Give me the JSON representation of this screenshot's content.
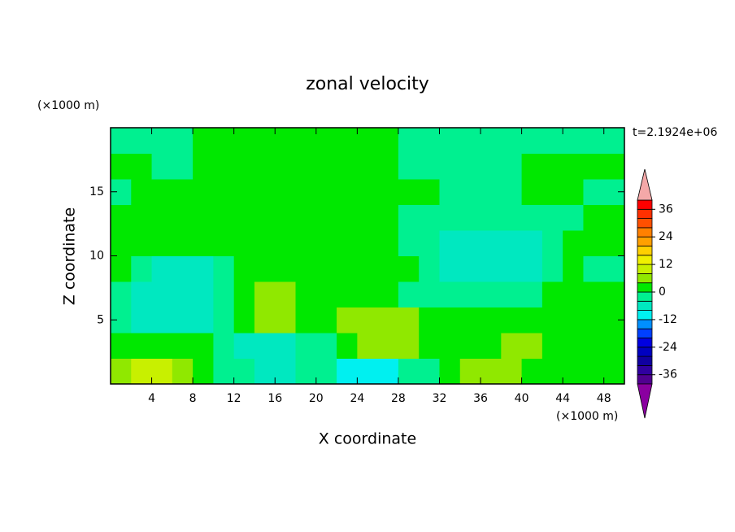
{
  "chart_data": {
    "type": "contour",
    "title": "zonal velocity",
    "xlabel": "X coordinate",
    "ylabel": "Z coordinate",
    "x_unit": "(×1000 m)",
    "y_unit": "(×1000 m)",
    "annotation": "t=2.1924e+06",
    "xlim": [
      0,
      50
    ],
    "ylim": [
      0,
      20
    ],
    "xticks": [
      4,
      8,
      12,
      16,
      20,
      24,
      28,
      32,
      36,
      40,
      44,
      48
    ],
    "yticks": [
      5,
      10,
      15
    ],
    "x": [
      1,
      3,
      5,
      7,
      9,
      11,
      13,
      15,
      17,
      19,
      21,
      23,
      25,
      27,
      29,
      31,
      33,
      35,
      37,
      39,
      41,
      43,
      45,
      47,
      49
    ],
    "y": [
      1,
      3,
      5,
      7,
      9,
      11,
      13,
      15,
      17,
      19
    ],
    "z": [
      [
        6,
        10,
        10,
        6,
        2,
        -2,
        -2,
        -6,
        -6,
        -2,
        -2,
        -10,
        -10,
        -10,
        -2,
        -2,
        2,
        6,
        6,
        6,
        2,
        2,
        2,
        2,
        2
      ],
      [
        2,
        2,
        2,
        2,
        2,
        -2,
        -6,
        -6,
        -6,
        -2,
        -2,
        2,
        6,
        6,
        6,
        2,
        2,
        2,
        2,
        6,
        6,
        2,
        2,
        2,
        2
      ],
      [
        -2,
        -6,
        -6,
        -6,
        -6,
        -2,
        2,
        6,
        6,
        2,
        2,
        6,
        6,
        6,
        6,
        2,
        2,
        2,
        2,
        2,
        2,
        2,
        2,
        2,
        2
      ],
      [
        -2,
        -6,
        -6,
        -6,
        -6,
        -2,
        2,
        6,
        6,
        2,
        2,
        2,
        2,
        2,
        -2,
        -2,
        -2,
        -2,
        -2,
        -2,
        -2,
        2,
        2,
        2,
        2
      ],
      [
        2,
        -2,
        -6,
        -6,
        -6,
        -2,
        2,
        2,
        2,
        2,
        2,
        2,
        2,
        2,
        2,
        -2,
        -6,
        -6,
        -6,
        -6,
        -6,
        -2,
        2,
        -2,
        -2
      ],
      [
        2,
        2,
        2,
        2,
        2,
        2,
        2,
        2,
        2,
        2,
        2,
        2,
        2,
        2,
        -2,
        -2,
        -6,
        -6,
        -6,
        -6,
        -6,
        -2,
        2,
        2,
        2
      ],
      [
        2,
        2,
        2,
        2,
        2,
        2,
        2,
        2,
        2,
        2,
        2,
        2,
        2,
        2,
        -2,
        -2,
        -2,
        -2,
        -2,
        -2,
        -2,
        -2,
        -2,
        2,
        2
      ],
      [
        -2,
        2,
        2,
        2,
        2,
        2,
        2,
        2,
        2,
        2,
        2,
        2,
        2,
        2,
        2,
        2,
        -2,
        -2,
        -2,
        -2,
        2,
        2,
        2,
        -2,
        -2
      ],
      [
        2,
        2,
        -2,
        -2,
        2,
        2,
        2,
        2,
        2,
        2,
        2,
        2,
        2,
        2,
        -2,
        -2,
        -2,
        -2,
        -2,
        -2,
        2,
        2,
        2,
        2,
        2
      ],
      [
        -2,
        -2,
        -2,
        -2,
        2,
        2,
        2,
        2,
        2,
        2,
        2,
        2,
        2,
        2,
        -2,
        -2,
        -2,
        -2,
        -2,
        -2,
        -2,
        -2,
        -2,
        -2,
        -2
      ]
    ],
    "levels": [
      -40,
      -36,
      -32,
      -28,
      -24,
      -20,
      -16,
      -12,
      -8,
      -4,
      0,
      4,
      8,
      12,
      16,
      20,
      24,
      28,
      32,
      36,
      40
    ],
    "colors": [
      "#500090",
      "#3000a0",
      "#1000a0",
      "#0000c0",
      "#0000e0",
      "#0040ff",
      "#0090ff",
      "#00f0f0",
      "#00e8c0",
      "#00f090",
      "#00e800",
      "#90e800",
      "#c8f000",
      "#f0f000",
      "#ffd000",
      "#ffa000",
      "#ff8000",
      "#ff5000",
      "#ff3000",
      "#ff0000"
    ],
    "under_color": "#8a00a0",
    "over_color": "#f4a8a8",
    "colorbar_ticks": [
      -36,
      -24,
      -12,
      0,
      12,
      24,
      36
    ]
  }
}
